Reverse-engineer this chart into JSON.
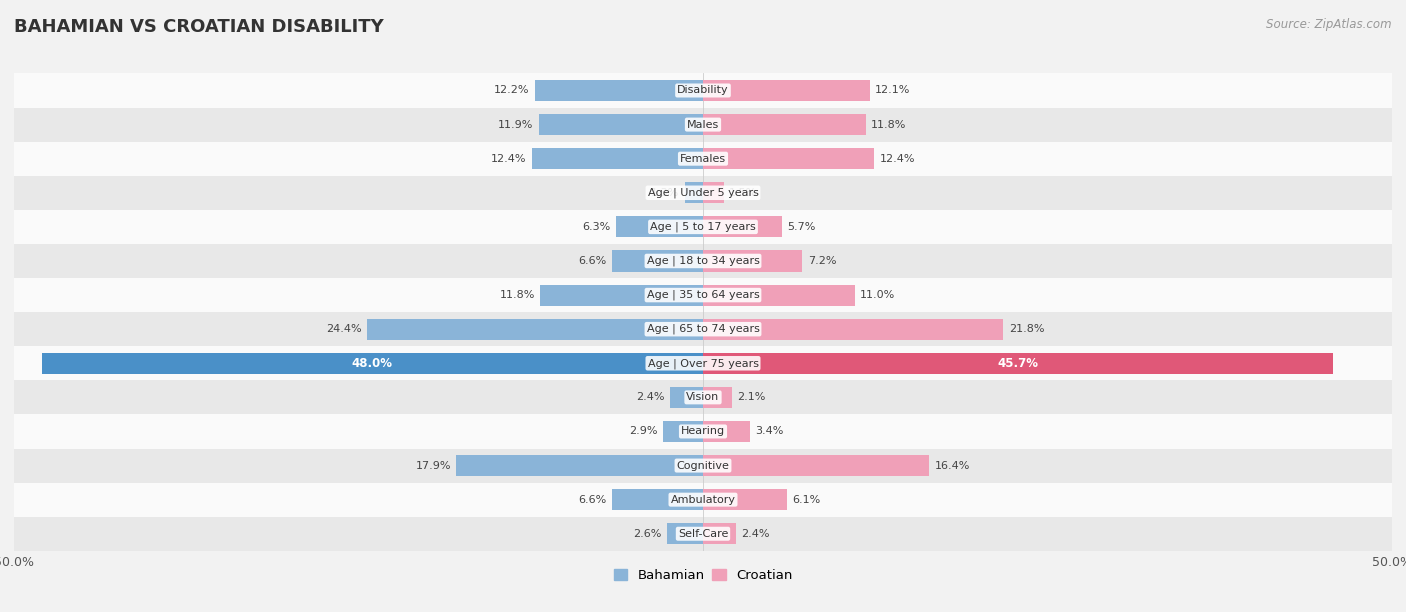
{
  "title": "BAHAMIAN VS CROATIAN DISABILITY",
  "source": "Source: ZipAtlas.com",
  "categories": [
    "Disability",
    "Males",
    "Females",
    "Age | Under 5 years",
    "Age | 5 to 17 years",
    "Age | 18 to 34 years",
    "Age | 35 to 64 years",
    "Age | 65 to 74 years",
    "Age | Over 75 years",
    "Vision",
    "Hearing",
    "Cognitive",
    "Ambulatory",
    "Self-Care"
  ],
  "bahamian": [
    12.2,
    11.9,
    12.4,
    1.3,
    6.3,
    6.6,
    11.8,
    24.4,
    48.0,
    2.4,
    2.9,
    17.9,
    6.6,
    2.6
  ],
  "croatian": [
    12.1,
    11.8,
    12.4,
    1.5,
    5.7,
    7.2,
    11.0,
    21.8,
    45.7,
    2.1,
    3.4,
    16.4,
    6.1,
    2.4
  ],
  "bahamian_color": "#8ab4d8",
  "croatian_color": "#f0a0b8",
  "bahamian_color_highlight": "#4a90c8",
  "croatian_color_highlight": "#e05878",
  "axis_max": 50.0,
  "background_color": "#f2f2f2",
  "row_bg_even": "#fafafa",
  "row_bg_odd": "#e8e8e8",
  "highlight_index": 8,
  "legend_bahamian": "Bahamian",
  "legend_croatian": "Croatian"
}
